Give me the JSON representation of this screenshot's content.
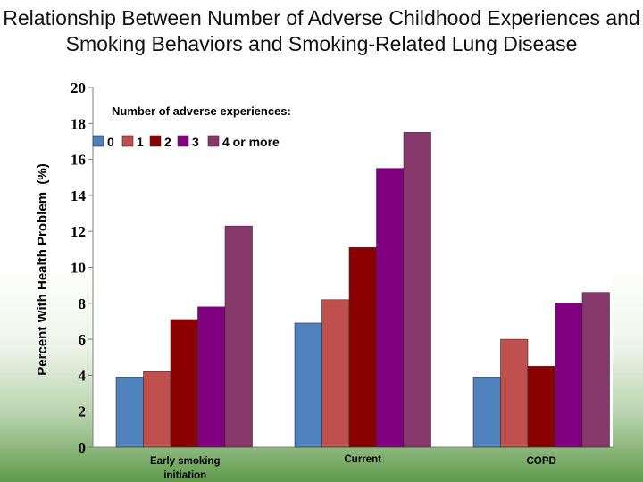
{
  "chart_data": {
    "type": "bar",
    "title": "Relationship Between Number of Adverse Childhood Experiences and Smoking Behaviors and Smoking-Related Lung Disease",
    "ylabel": "Percent With Health Problem  (%)",
    "xlabel": "",
    "ylim": [
      0,
      20
    ],
    "yticks": [
      0,
      2,
      4,
      6,
      8,
      10,
      12,
      14,
      16,
      18,
      20
    ],
    "grid": false,
    "legend_title": "Number of adverse experiences:",
    "legend_position": "top-left",
    "categories": [
      [
        "Early smoking",
        "initiation"
      ],
      [
        "Current"
      ],
      [
        "COPD"
      ]
    ],
    "series": [
      {
        "name": "0",
        "color": "#4f81bd",
        "values": [
          3.9,
          6.9,
          3.9
        ]
      },
      {
        "name": "1",
        "color": "#c0504d",
        "values": [
          4.2,
          8.2,
          6.0
        ]
      },
      {
        "name": "2",
        "color": "#8b0000",
        "values": [
          7.1,
          11.1,
          4.5
        ]
      },
      {
        "name": "3",
        "color": "#800080",
        "values": [
          7.8,
          15.5,
          8.0
        ]
      },
      {
        "name": "4 or more",
        "color": "#87386a",
        "values": [
          12.3,
          17.5,
          8.6
        ]
      }
    ]
  }
}
